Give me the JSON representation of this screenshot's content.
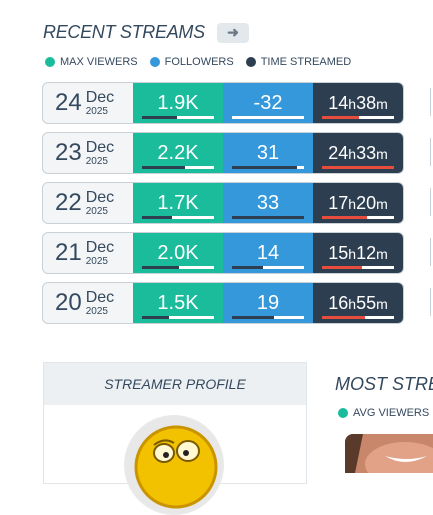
{
  "recent_streams": {
    "title": "RECENT STREAMS",
    "arrow_icon": "arrow-right-icon",
    "legend": [
      {
        "label": "MAX VIEWERS",
        "color": "#1abc9c"
      },
      {
        "label": "FOLLOWERS",
        "color": "#3498db"
      },
      {
        "label": "TIME STREAMED",
        "color": "#2c3e50"
      }
    ],
    "rows": [
      {
        "day": "24",
        "month": "Dec",
        "year": "2025",
        "max_viewers": "1.9K",
        "mv_level": 0.48,
        "followers": "-32",
        "fo_level": 0.0,
        "hours": "14",
        "minutes": "38",
        "ts_level": 0.52
      },
      {
        "day": "23",
        "month": "Dec",
        "year": "2025",
        "max_viewers": "2.2K",
        "mv_level": 0.6,
        "followers": "31",
        "fo_level": 0.9,
        "hours": "24",
        "minutes": "33",
        "ts_level": 1.0
      },
      {
        "day": "22",
        "month": "Dec",
        "year": "2025",
        "max_viewers": "1.7K",
        "mv_level": 0.42,
        "followers": "33",
        "fo_level": 1.0,
        "hours": "17",
        "minutes": "20",
        "ts_level": 0.62
      },
      {
        "day": "21",
        "month": "Dec",
        "year": "2025",
        "max_viewers": "2.0K",
        "mv_level": 0.52,
        "followers": "14",
        "fo_level": 0.43,
        "hours": "15",
        "minutes": "12",
        "ts_level": 0.55
      },
      {
        "day": "20",
        "month": "Dec",
        "year": "2025",
        "max_viewers": "1.5K",
        "mv_level": 0.37,
        "followers": "19",
        "fo_level": 0.58,
        "hours": "16",
        "minutes": "55",
        "ts_level": 0.6
      }
    ],
    "h_unit": "h",
    "m_unit": "m"
  },
  "streamer_profile": {
    "title": "STREAMER PROFILE",
    "avatar_icon": "emoji-avatar"
  },
  "most_streamed": {
    "title": "MOST STREA",
    "legend_label": "AVG VIEWERS",
    "legend_color": "#1abc9c"
  }
}
